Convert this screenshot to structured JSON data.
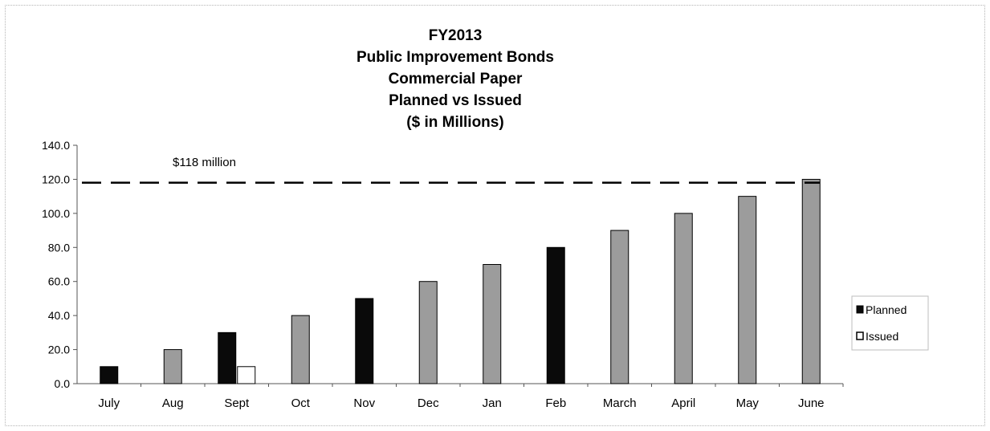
{
  "chart_data": {
    "type": "bar",
    "title_lines": [
      "FY2013",
      "Public Improvement Bonds",
      "Commercial Paper",
      "Planned vs Issued",
      "($ in Millions)"
    ],
    "categories": [
      "July",
      "Aug",
      "Sept",
      "Oct",
      "Nov",
      "Dec",
      "Jan",
      "Feb",
      "March",
      "April",
      "May",
      "June"
    ],
    "series": [
      {
        "name": "Planned",
        "values": [
          10,
          20,
          30,
          40,
          50,
          60,
          70,
          80,
          90,
          100,
          110,
          120
        ]
      },
      {
        "name": "Issued",
        "values": [
          null,
          null,
          10,
          null,
          null,
          null,
          null,
          null,
          null,
          null,
          null,
          null
        ]
      }
    ],
    "planned_fill_by_category": [
      "black",
      "gray",
      "black",
      "gray",
      "black",
      "gray",
      "gray",
      "black",
      "gray",
      "gray",
      "gray",
      "gray"
    ],
    "ylim": [
      0,
      140
    ],
    "yticks": [
      "0.0",
      "20.0",
      "40.0",
      "60.0",
      "80.0",
      "100.0",
      "120.0",
      "140.0"
    ],
    "reference_line": {
      "value": 118,
      "style": "dashed",
      "label": "$118 million"
    },
    "legend": {
      "position": "right",
      "items": [
        "Planned",
        "Issued"
      ]
    },
    "xlabel": "",
    "ylabel": "",
    "grid": false,
    "colors": {
      "black": "#0a0a0a",
      "gray": "#9c9c9c",
      "issued": "#ffffff",
      "outline": "#000000"
    }
  }
}
